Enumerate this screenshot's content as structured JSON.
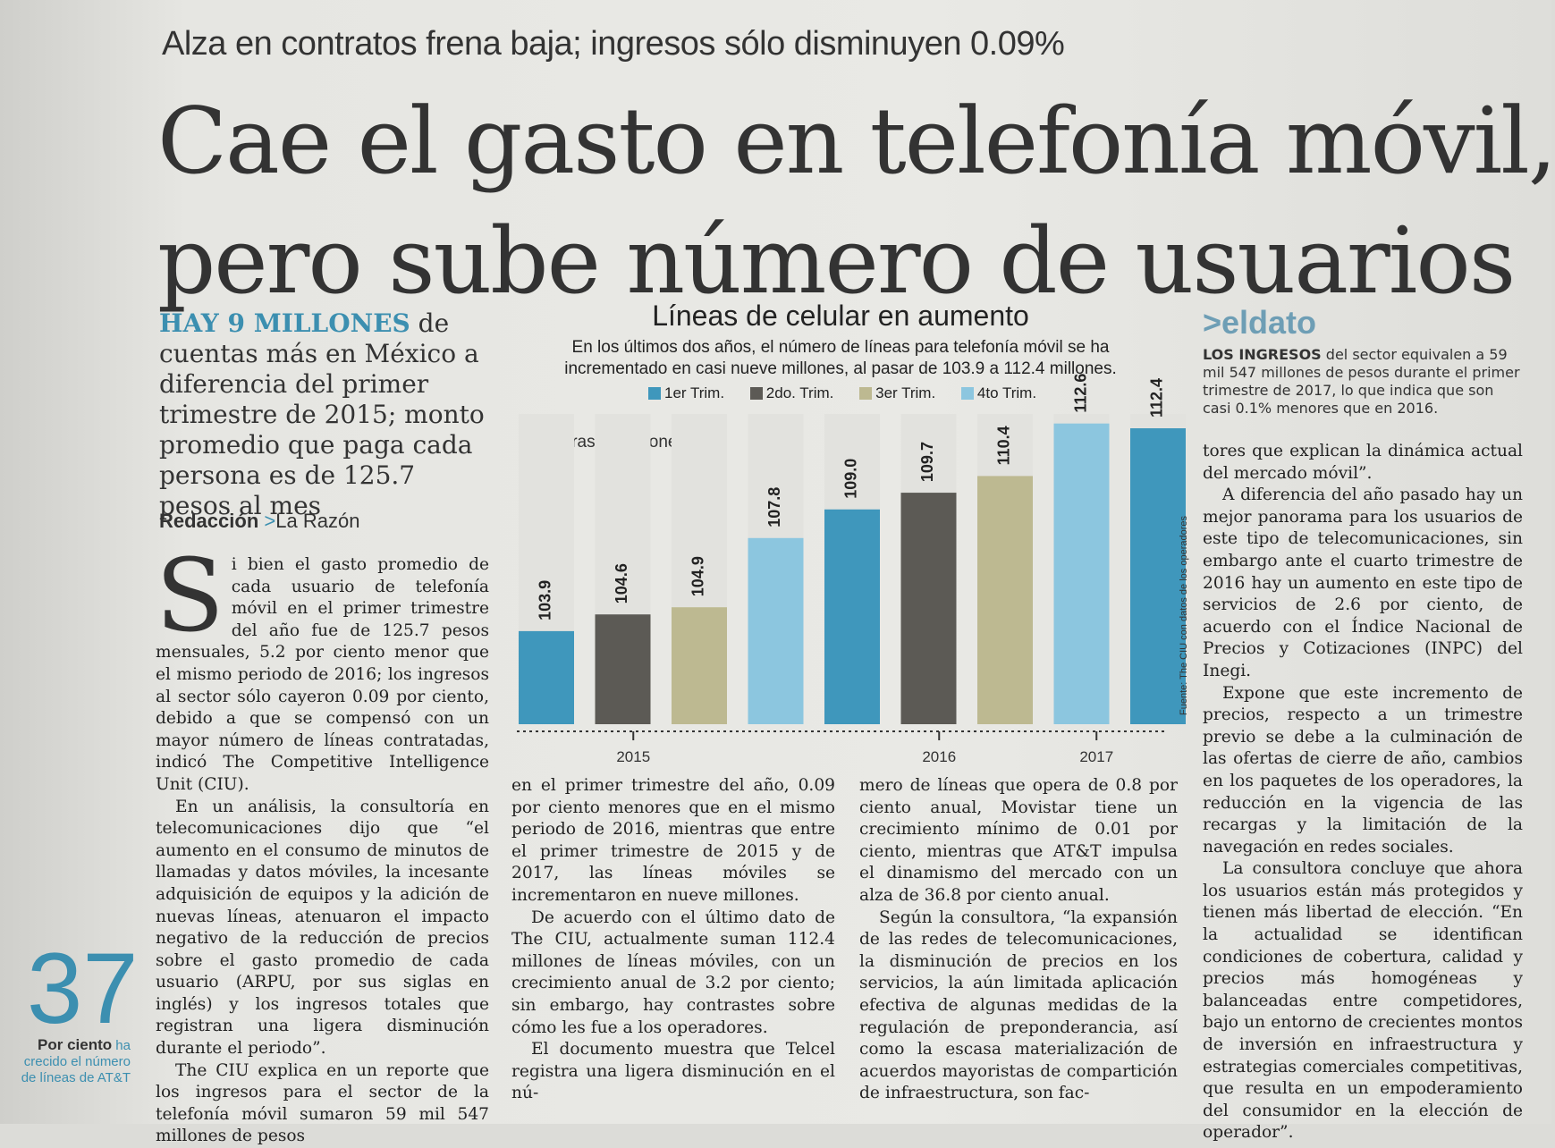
{
  "kicker": "Alza en contratos frena baja; ingresos sólo disminuyen 0.09%",
  "headline": {
    "line1": "Cae el gasto en telefonía móvil,",
    "line2": "pero sube número de usuarios"
  },
  "dek": {
    "highlight": "HAY 9 MILLONES",
    "text": " de cuentas más en México a diferencia del primer trimestre de 2015; monto promedio que paga cada persona es de 125.7 pesos al mes"
  },
  "byline": {
    "author": "Redacción",
    "separator": ">",
    "outlet": "La Razón"
  },
  "sidebar_stat": {
    "number": "37",
    "label_bold": "Por ciento",
    "label_rest": " ha crecido el número de líneas de AT&T"
  },
  "chart_data": {
    "type": "bar",
    "title": "Líneas de celular en aumento",
    "subtitle": "En los últimos dos años, el número de líneas para telefonía móvil se ha incrementado en casi nueve millones, al pasar de 103.9 a 112.4 millones.",
    "unit_label": "Cifras en millones",
    "legend": [
      "1er Trim.",
      "2do. Trim.",
      "3er Trim.",
      "4to Trim."
    ],
    "colors": [
      "#3f97bc",
      "#5c5a55",
      "#bdb991",
      "#8cc6df"
    ],
    "bars": [
      {
        "quarter": "1er Trim.",
        "year": "2015",
        "value": 103.9
      },
      {
        "quarter": "2do. Trim.",
        "year": "2015",
        "value": 104.6
      },
      {
        "quarter": "3er Trim.",
        "year": "2015",
        "value": 104.9
      },
      {
        "quarter": "4to Trim.",
        "year": "2015",
        "value": 107.8
      },
      {
        "quarter": "1er Trim.",
        "year": "2016",
        "value": 109.0
      },
      {
        "quarter": "2do. Trim.",
        "year": "2016",
        "value": 109.7
      },
      {
        "quarter": "3er Trim.",
        "year": "2016",
        "value": 110.4
      },
      {
        "quarter": "4to Trim.",
        "year": "2016",
        "value": 112.6
      },
      {
        "quarter": "1er Trim.",
        "year": "2017",
        "value": 112.4
      }
    ],
    "year_labels": [
      "2015",
      "2016",
      "2017"
    ],
    "ylim": [
      100,
      113
    ],
    "source": "Fuente: The CIU con datos de los operadores"
  },
  "eldato": {
    "heading": ">eldato",
    "bold": "LOS INGRESOS",
    "text": " del sector equivalen a 59 mil 547 millones de pesos durante el primer trimestre de 2017, lo que indica que son casi 0.1% menores que en 2016."
  },
  "body": {
    "col1": {
      "dropcap": "S",
      "p1": "i bien el gasto promedio de cada usuario de telefonía móvil en el primer trimestre del año fue de 125.7 pesos mensuales, 5.2 por ciento menor que el mismo periodo de 2016; los ingresos al sector sólo cayeron 0.09 por ciento, debido a que se compensó con un mayor número de líneas contratadas, indicó The Competitive Intelligence Unit (CIU).",
      "p2": "En un análisis, la consultoría en telecomunicaciones dijo que “el aumento en el consumo de minutos de llamadas y datos móviles, la incesante adquisición de equipos y la adición de nuevas líneas, atenuaron el impacto negativo de la reducción de precios sobre el gasto promedio de cada usuario (ARPU, por sus siglas en inglés) y los ingresos totales que registran una ligera disminución durante el periodo”.",
      "p3": "The CIU explica en un reporte que los ingresos para el sector de la telefonía móvil sumaron 59 mil 547 millones de pesos"
    },
    "col2": {
      "p1": "en el primer trimestre del año, 0.09 por ciento menores que en el mismo periodo de 2016, mientras que entre el primer trimestre de 2015 y de 2017, las líneas móviles se incrementaron en nueve millones.",
      "p2": "De acuerdo con el último dato de The CIU, actualmente suman 112.4 millones de líneas móviles, con un crecimiento anual de 3.2 por ciento; sin embargo, hay contrastes sobre cómo les fue a los operadores.",
      "p3": "El documento muestra que Telcel registra una ligera disminución en el nú-"
    },
    "col3": {
      "p1": "mero de líneas que opera de 0.8 por ciento anual, Movistar tiene un crecimiento mínimo de 0.01 por ciento, mientras que AT&T impulsa el dinamismo del mercado con un alza de 36.8 por ciento anual.",
      "p2": "Según la consultora, “la expansión de las redes de telecomunicaciones, la disminución de precios en los servicios, la aún limitada aplicación efectiva de algunas medidas de la regulación de preponderancia, así como la escasa materialización de acuerdos mayoristas de compartición de infraestructura, son fac-"
    },
    "col4": {
      "p1": "tores que explican la dinámica actual del mercado móvil”.",
      "p2": "A diferencia del año pasado hay un mejor panorama para los usuarios de este tipo de telecomunicaciones, sin embargo ante el cuarto trimestre de 2016 hay un aumento en este tipo de servicios de 2.6 por ciento, de acuerdo con el Índice Nacional de Precios y Cotizaciones (INPC) del Inegi.",
      "p3": "Expone que este incremento de precios, respecto a un trimestre previo se debe a la culminación de las ofertas de cierre de año, cambios en los paquetes de los operadores, la reducción en la vigencia de las recargas y la limitación de la navegación en redes sociales.",
      "p4": "La consultora concluye que ahora los usuarios están más protegidos y tienen más libertad de elección. “En la actualidad se identifican condiciones de cobertura, calidad y precios más homogéneas y balanceadas entre competidores, bajo un entorno de crecientes montos de inversión en infraestructura y estrategias comerciales competitivas, que resulta en un empoderamiento del consumidor en la elección de operador”."
    }
  }
}
